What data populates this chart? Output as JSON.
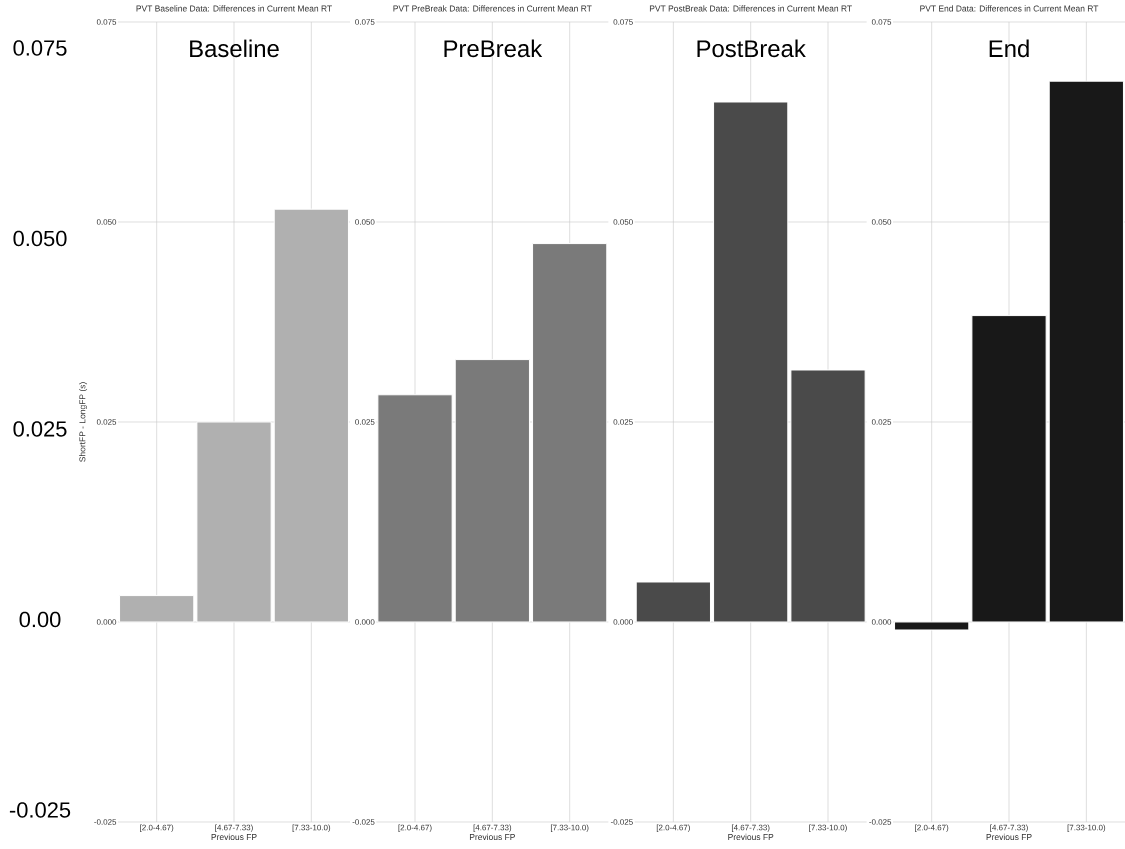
{
  "chart_data": [
    {
      "type": "bar",
      "title": "PVT Baseline Data: Differences in Current Mean RT",
      "subtitle": "Baseline",
      "xlabel": "Previous FP",
      "ylabel": "ShortFP - LongFP (s)",
      "categories": [
        "[2.0-4.67)",
        "[4.67-7.33)",
        "[7.33-10.0)"
      ],
      "values": [
        0.0033,
        0.025,
        0.0516
      ],
      "color": "#b0b0b0",
      "ylim": [
        -0.025,
        0.075
      ],
      "yticks": [
        {
          "value": -0.025,
          "label": "-0.025"
        },
        {
          "value": 0,
          "label": "0.000"
        },
        {
          "value": 0.025,
          "label": "0.025"
        },
        {
          "value": 0.05,
          "label": "0.050"
        },
        {
          "value": 0.075,
          "label": "0.075"
        }
      ],
      "grid": true,
      "annotations": [
        "0.075",
        "0.050",
        "0.025",
        "0.00",
        "-0.025"
      ]
    },
    {
      "type": "bar",
      "title": "PVT PreBreak Data: Differences in Current Mean RT",
      "subtitle": "PreBreak",
      "xlabel": "Previous FP",
      "categories": [
        "[2.0-4.67)",
        "[4.67-7.33)",
        "[7.33-10.0)"
      ],
      "values": [
        0.0284,
        0.0328,
        0.0473
      ],
      "color": "#7a7a7a",
      "ylim": [
        -0.025,
        0.075
      ],
      "yticks": [
        {
          "value": -0.025,
          "label": "-0.025"
        },
        {
          "value": 0,
          "label": "0.000"
        },
        {
          "value": 0.025,
          "label": "0.025"
        },
        {
          "value": 0.05,
          "label": "0.050"
        },
        {
          "value": 0.075,
          "label": "0.075"
        }
      ],
      "grid": true
    },
    {
      "type": "bar",
      "title": "PVT PostBreak Data: Differences in Current Mean RT",
      "subtitle": "PostBreak",
      "xlabel": "Previous FP",
      "categories": [
        "[2.0-4.67)",
        "[4.67-7.33)",
        "[7.33-10.0)"
      ],
      "values": [
        0.005,
        0.065,
        0.0315
      ],
      "color": "#4a4a4a",
      "ylim": [
        -0.025,
        0.075
      ],
      "yticks": [
        {
          "value": -0.025,
          "label": "-0.025"
        },
        {
          "value": 0,
          "label": "0.000"
        },
        {
          "value": 0.025,
          "label": "0.025"
        },
        {
          "value": 0.05,
          "label": "0.050"
        },
        {
          "value": 0.075,
          "label": "0.075"
        }
      ],
      "grid": true
    },
    {
      "type": "bar",
      "title": "PVT End Data: Differences in Current Mean RT",
      "subtitle": "End",
      "xlabel": "Previous FP",
      "categories": [
        "[2.0-4.67)",
        "[4.67-7.33)",
        "[7.33-10.0)"
      ],
      "values": [
        -0.001,
        0.0383,
        0.0676
      ],
      "color": "#181818",
      "ylim": [
        -0.025,
        0.075
      ],
      "yticks": [
        {
          "value": -0.025,
          "label": "-0.025"
        },
        {
          "value": 0,
          "label": "0.000"
        },
        {
          "value": 0.025,
          "label": "0.025"
        },
        {
          "value": 0.05,
          "label": "0.050"
        },
        {
          "value": 0.075,
          "label": "0.075"
        }
      ],
      "grid": true
    }
  ]
}
